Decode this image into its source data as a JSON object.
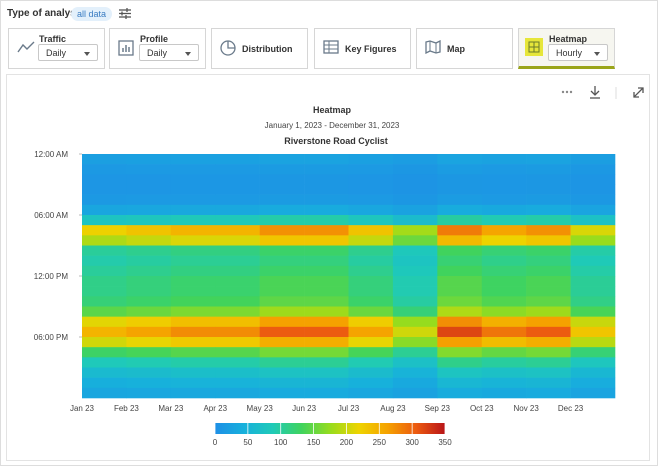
{
  "header": {
    "label": "Type of analysis",
    "chip": "all data"
  },
  "tabs": [
    {
      "label": "Traffic",
      "select": "Daily"
    },
    {
      "label": "Profile",
      "select": "Daily"
    },
    {
      "label": "Distribution"
    },
    {
      "label": "Key Figures"
    },
    {
      "label": "Map"
    },
    {
      "label": "Heatmap",
      "select": "Hourly"
    }
  ],
  "chart_data": {
    "type": "heatmap",
    "title": "Heatmap",
    "subtitle": "January 1, 2023 - December 31, 2023",
    "series_title": "Riverstone Road Cyclist",
    "categories": [
      "Jan 23",
      "Feb 23",
      "Mar 23",
      "Apr 23",
      "May 23",
      "Jun 23",
      "Jul 23",
      "Aug 23",
      "Sep 23",
      "Oct 23",
      "Nov 23",
      "Dec 23"
    ],
    "ylim": [
      0,
      24
    ],
    "yticks": [
      {
        "value": 0,
        "label": "12:00 AM"
      },
      {
        "value": 6,
        "label": "06:00 AM"
      },
      {
        "value": 12,
        "label": "12:00 PM"
      },
      {
        "value": 18,
        "label": "06:00 PM"
      }
    ],
    "z": [
      [
        21,
        23,
        24,
        24,
        26,
        26,
        23,
        18,
        28,
        25,
        26,
        20
      ],
      [
        13,
        14,
        14,
        14,
        16,
        16,
        14,
        11,
        17,
        15,
        16,
        12
      ],
      [
        9,
        9,
        10,
        10,
        11,
        11,
        9,
        7,
        11,
        10,
        11,
        8
      ],
      [
        9,
        9,
        10,
        10,
        11,
        11,
        9,
        7,
        11,
        10,
        11,
        8
      ],
      [
        13,
        14,
        14,
        14,
        16,
        16,
        14,
        11,
        17,
        15,
        16,
        12
      ],
      [
        30,
        32,
        33,
        33,
        37,
        37,
        32,
        25,
        39,
        35,
        37,
        28
      ],
      [
        77,
        81,
        86,
        86,
        95,
        95,
        81,
        63,
        99,
        90,
        95,
        72
      ],
      [
        221,
        234,
        247,
        247,
        273,
        273,
        234,
        182,
        286,
        260,
        273,
        208
      ],
      [
        187,
        198,
        209,
        209,
        231,
        231,
        198,
        154,
        242,
        220,
        231,
        176
      ],
      [
        102,
        108,
        114,
        114,
        126,
        126,
        108,
        84,
        132,
        120,
        126,
        96
      ],
      [
        94,
        99,
        105,
        105,
        116,
        116,
        99,
        77,
        121,
        110,
        116,
        88
      ],
      [
        102,
        108,
        114,
        114,
        126,
        126,
        108,
        84,
        132,
        120,
        126,
        96
      ],
      [
        111,
        117,
        124,
        124,
        137,
        137,
        117,
        91,
        143,
        130,
        137,
        104
      ],
      [
        111,
        117,
        124,
        124,
        137,
        137,
        117,
        91,
        143,
        130,
        137,
        104
      ],
      [
        119,
        126,
        133,
        133,
        147,
        147,
        126,
        98,
        154,
        140,
        147,
        112
      ],
      [
        145,
        153,
        162,
        162,
        179,
        179,
        153,
        119,
        187,
        170,
        179,
        136
      ],
      [
        213,
        225,
        238,
        238,
        263,
        263,
        225,
        175,
        275,
        250,
        263,
        200
      ],
      [
        247,
        261,
        276,
        276,
        305,
        305,
        261,
        203,
        319,
        290,
        305,
        232
      ],
      [
        204,
        216,
        228,
        228,
        252,
        252,
        216,
        168,
        264,
        240,
        252,
        192
      ],
      [
        128,
        135,
        143,
        143,
        158,
        158,
        135,
        105,
        165,
        150,
        158,
        120
      ],
      [
        85,
        90,
        95,
        95,
        105,
        105,
        90,
        70,
        110,
        100,
        105,
        80
      ],
      [
        60,
        63,
        67,
        67,
        74,
        74,
        63,
        49,
        77,
        70,
        74,
        56
      ],
      [
        43,
        45,
        48,
        48,
        53,
        53,
        45,
        35,
        55,
        50,
        53,
        40
      ],
      [
        30,
        32,
        33,
        33,
        37,
        37,
        32,
        25,
        39,
        35,
        37,
        28
      ]
    ],
    "zlim": [
      0,
      350
    ],
    "zticks": [
      0,
      50,
      100,
      150,
      200,
      250,
      300,
      350
    ],
    "colorscale": [
      "#1e8fe6",
      "#17b0dc",
      "#1fcab8",
      "#3fd35e",
      "#96dc1e",
      "#eed400",
      "#f5a200",
      "#ec5a10",
      "#b81418"
    ]
  }
}
